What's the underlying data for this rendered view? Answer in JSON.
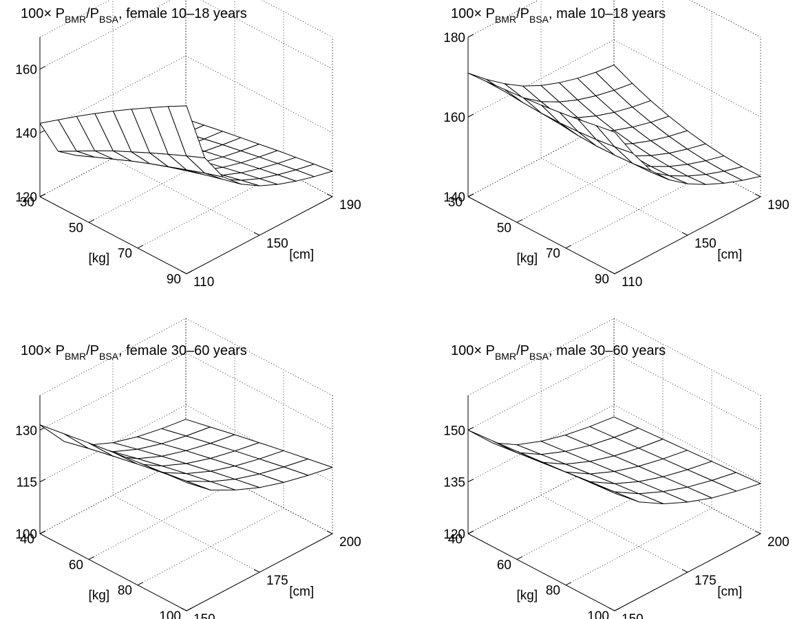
{
  "chart_data": [
    {
      "type": "surface",
      "title": {
        "prefix": "100× P",
        "sub1": "BMR",
        "mid": "/P",
        "sub2": "BSA",
        "suffix": ", female 10–18 years"
      },
      "xlabel": "[kg]",
      "ylabel": "[cm]",
      "xlim": [
        30,
        90
      ],
      "ylim": [
        110,
        190
      ],
      "zlim": [
        120,
        170
      ],
      "xticks": [
        "30",
        "50",
        "70",
        "90"
      ],
      "yticks": [
        "110",
        "150",
        "190"
      ],
      "zticks": [
        "120",
        "140",
        "160"
      ],
      "x": [
        30,
        37.5,
        45,
        52.5,
        60,
        67.5,
        75,
        82.5,
        90
      ],
      "y": [
        110,
        120,
        130,
        140,
        150,
        160,
        170,
        180,
        190
      ],
      "z": [
        [
          143,
          147.1,
          151.2,
          155.1,
          158.9,
          162.5,
          166.0,
          169.4,
          172.6
        ],
        [
          131.2,
          134.3,
          137.4,
          140.4,
          143.1,
          145.8,
          148.4,
          150.9,
          153.3
        ],
        [
          126.9,
          129.4,
          131.8,
          134.2,
          136.4,
          138.5,
          140.5,
          142.5,
          144.3
        ],
        [
          124.5,
          126.6,
          128.6,
          130.6,
          132.4,
          134.2,
          135.9,
          137.5,
          139.0
        ],
        [
          123.0,
          124.8,
          126.5,
          128.2,
          129.8,
          131.3,
          132.8,
          134.2,
          135.5
        ],
        [
          122.0,
          123.5,
          125.0,
          126.5,
          127.9,
          129.2,
          130.5,
          131.7,
          132.9
        ],
        [
          121.2,
          122.6,
          123.9,
          125.2,
          126.4,
          127.6,
          128.8,
          129.9,
          130.9
        ],
        [
          120.6,
          121.8,
          123.0,
          124.2,
          125.3,
          126.4,
          127.4,
          128.4,
          129.3
        ],
        [
          120.2,
          121.3,
          122.4,
          123.4,
          124.4,
          125.4,
          126.3,
          127.2,
          128.0
        ]
      ]
    },
    {
      "type": "surface",
      "title": {
        "prefix": "100× P",
        "sub1": "BMR",
        "mid": "/P",
        "sub2": "BSA",
        "suffix": ", male 10–18 years"
      },
      "xlabel": "[kg]",
      "ylabel": "[cm]",
      "xlim": [
        30,
        90
      ],
      "ylim": [
        110,
        190
      ],
      "zlim": [
        140,
        180
      ],
      "xticks": [
        "30",
        "50",
        "70",
        "90"
      ],
      "yticks": [
        "110",
        "150",
        "190"
      ],
      "zticks": [
        "140",
        "160",
        "180"
      ],
      "x": [
        30,
        37.5,
        45,
        52.5,
        60,
        67.5,
        75,
        82.5,
        90
      ],
      "y": [
        110,
        120,
        130,
        140,
        150,
        160,
        170,
        180,
        190
      ],
      "z": [
        [
          171.0,
          171.3,
          171.7,
          172.1,
          172.6,
          173.2,
          173.9,
          174.7,
          175.5
        ],
        [
          167.0,
          166.4,
          166.0,
          165.8,
          165.8,
          166.0,
          166.4,
          167.0,
          167.8
        ],
        [
          163.5,
          162.4,
          161.4,
          160.7,
          160.2,
          160.0,
          160.1,
          160.4,
          161.0
        ],
        [
          160.5,
          159.0,
          157.8,
          156.8,
          156.1,
          155.7,
          155.6,
          155.8,
          156.3
        ],
        [
          158.2,
          156.5,
          155.0,
          153.9,
          153.1,
          152.6,
          152.4,
          152.5,
          152.9
        ],
        [
          156.5,
          154.6,
          153.0,
          151.8,
          150.9,
          150.3,
          150.0,
          150.0,
          150.3
        ],
        [
          155.2,
          153.2,
          151.5,
          150.2,
          149.2,
          148.5,
          148.1,
          148.0,
          148.2
        ],
        [
          154.3,
          152.2,
          150.4,
          149.0,
          147.9,
          147.1,
          146.6,
          146.4,
          146.5
        ],
        [
          153.7,
          151.5,
          149.6,
          148.1,
          146.9,
          146.0,
          145.4,
          145.1,
          145.1
        ]
      ]
    },
    {
      "type": "surface",
      "title": {
        "prefix": "100× P",
        "sub1": "BMR",
        "mid": "/P",
        "sub2": "BSA",
        "suffix": ", female 30–60 years"
      },
      "xlabel": "[kg]",
      "ylabel": "[cm]",
      "xlim": [
        40,
        100
      ],
      "ylim": [
        150,
        200
      ],
      "zlim": [
        100,
        140
      ],
      "xticks": [
        "40",
        "60",
        "80",
        "100"
      ],
      "yticks": [
        "150",
        "175",
        "200"
      ],
      "zticks": [
        "100",
        "115",
        "130"
      ],
      "x": [
        40,
        50,
        60,
        70,
        80,
        90,
        100
      ],
      "y": [
        150,
        158.3,
        166.7,
        175,
        183.3,
        191.7,
        200
      ],
      "z": [
        [
          131.5,
          132.6,
          133.7,
          134.7,
          135.6,
          136.4,
          137.1
        ],
        [
          123.0,
          124.7,
          126.2,
          127.6,
          128.9,
          130.1,
          131.2
        ],
        [
          118.2,
          120.0,
          121.7,
          123.3,
          124.8,
          126.2,
          127.5
        ],
        [
          115.2,
          117.0,
          118.7,
          120.3,
          121.8,
          123.2,
          124.5
        ],
        [
          113.2,
          114.9,
          116.6,
          118.1,
          119.6,
          121.0,
          122.3
        ],
        [
          111.8,
          113.4,
          115.0,
          116.5,
          117.9,
          119.3,
          120.6
        ],
        [
          110.8,
          112.3,
          113.8,
          115.2,
          116.6,
          117.9,
          119.2
        ]
      ]
    },
    {
      "type": "surface",
      "title": {
        "prefix": "100× P",
        "sub1": "BMR",
        "mid": "/P",
        "sub2": "BSA",
        "suffix": ", male 30–60 years"
      },
      "xlabel": "[kg]",
      "ylabel": "[cm]",
      "xlim": [
        40,
        100
      ],
      "ylim": [
        150,
        200
      ],
      "zlim": [
        120,
        160
      ],
      "xticks": [
        "40",
        "60",
        "80",
        "100"
      ],
      "yticks": [
        "150",
        "175",
        "200"
      ],
      "zticks": [
        "120",
        "135",
        "150"
      ],
      "x": [
        40,
        50,
        60,
        70,
        80,
        90,
        100
      ],
      "y": [
        150,
        158.3,
        166.7,
        175,
        183.3,
        191.7,
        200
      ],
      "z": [
        [
          150.0,
          150.6,
          151.3,
          152.0,
          152.7,
          153.4,
          154.0
        ],
        [
          142.6,
          143.5,
          144.4,
          145.3,
          146.2,
          147.0,
          147.8
        ],
        [
          138.3,
          139.2,
          140.1,
          141.0,
          141.9,
          142.7,
          143.5
        ],
        [
          135.6,
          136.4,
          137.2,
          138.0,
          138.8,
          139.6,
          140.3
        ],
        [
          133.7,
          134.4,
          135.1,
          135.8,
          136.5,
          137.2,
          137.8
        ],
        [
          132.4,
          133.0,
          133.6,
          134.2,
          134.8,
          135.4,
          136.0
        ],
        [
          131.5,
          132.0,
          132.5,
          133.0,
          133.5,
          134.0,
          134.5
        ]
      ]
    }
  ]
}
